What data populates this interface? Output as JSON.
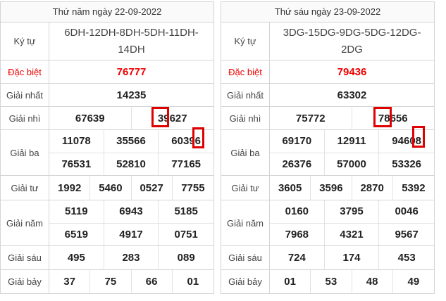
{
  "tables": [
    {
      "header": "Thứ năm ngày 22-09-2022",
      "rows": [
        {
          "label": "Ký tự",
          "values": [
            "6DH-12DH-8DH-5DH-11DH-14DH"
          ]
        },
        {
          "label": "Đặc biệt",
          "values": [
            "76777"
          ]
        },
        {
          "label": "Giải nhất",
          "values": [
            "14235"
          ]
        },
        {
          "label": "Giải nhì",
          "values": [
            "67639",
            "39627"
          ]
        },
        {
          "label": "Giải ba",
          "values": [
            "11078",
            "35566",
            "60396",
            "76531",
            "52810",
            "77165"
          ]
        },
        {
          "label": "Giải tư",
          "values": [
            "1992",
            "5460",
            "0527",
            "7755"
          ]
        },
        {
          "label": "Giải năm",
          "values": [
            "5119",
            "6943",
            "5185",
            "6519",
            "4917",
            "0751"
          ]
        },
        {
          "label": "Giải sáu",
          "values": [
            "495",
            "283",
            "089"
          ]
        },
        {
          "label": "Giải bảy",
          "values": [
            "37",
            "75",
            "66",
            "01"
          ]
        }
      ]
    },
    {
      "header": "Thứ sáu ngày 23-09-2022",
      "rows": [
        {
          "label": "Ký tự",
          "values": [
            "3DG-15DG-9DG-5DG-12DG-2DG"
          ]
        },
        {
          "label": "Đặc biệt",
          "values": [
            "79436"
          ]
        },
        {
          "label": "Giải nhất",
          "values": [
            "63302"
          ]
        },
        {
          "label": "Giải nhì",
          "values": [
            "75772",
            "78656"
          ]
        },
        {
          "label": "Giải ba",
          "values": [
            "69170",
            "12911",
            "94608",
            "26376",
            "57000",
            "53326"
          ]
        },
        {
          "label": "Giải tư",
          "values": [
            "3605",
            "3596",
            "2870",
            "5392"
          ]
        },
        {
          "label": "Giải năm",
          "values": [
            "0160",
            "3795",
            "0046",
            "7968",
            "4321",
            "9567"
          ]
        },
        {
          "label": "Giải sáu",
          "values": [
            "724",
            "174",
            "453"
          ]
        },
        {
          "label": "Giải bảy",
          "values": [
            "01",
            "53",
            "48",
            "49"
          ]
        }
      ]
    }
  ]
}
